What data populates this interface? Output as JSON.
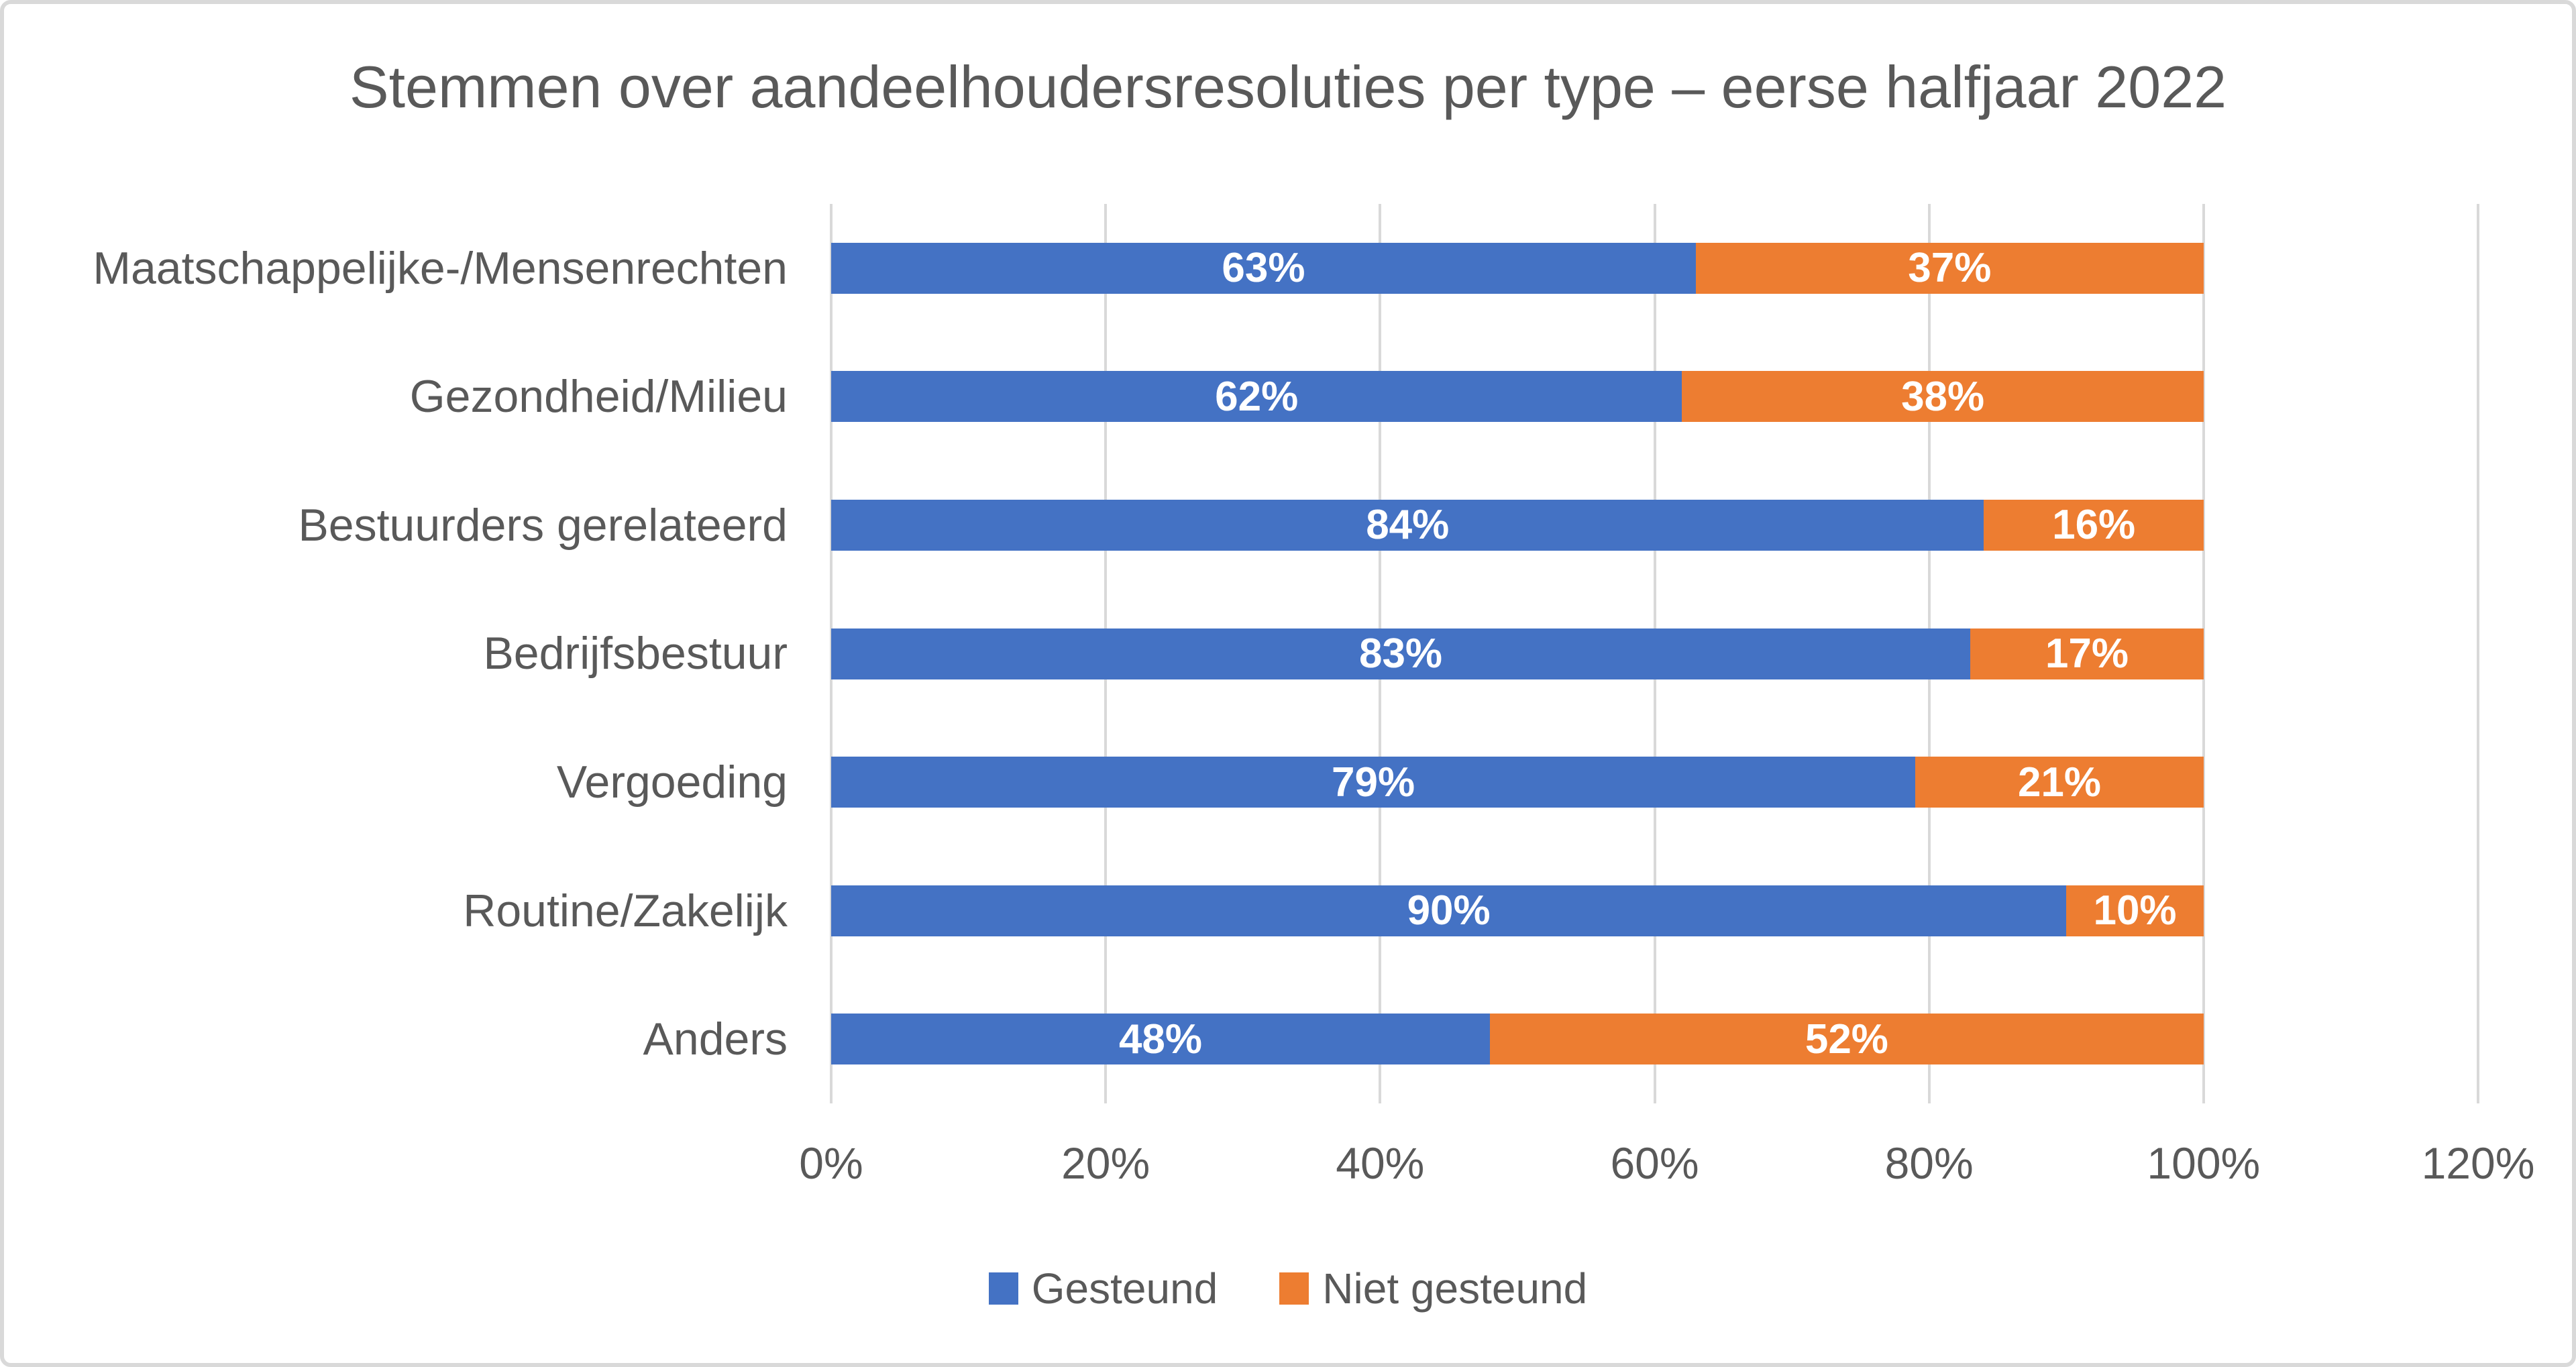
{
  "title": "Stemmen over aandeelhoudersresoluties per type – eerse halfjaar 2022",
  "chart_data": {
    "type": "bar",
    "orientation": "horizontal",
    "stacked": true,
    "title": "Stemmen over aandeelhoudersresoluties per type – eerse halfjaar 2022",
    "categories": [
      "Maatschappelijke-/Mensenrechten",
      "Gezondheid/Milieu",
      "Bestuurders gerelateerd",
      "Bedrijfsbestuur",
      "Vergoeding",
      "Routine/Zakelijk",
      "Anders"
    ],
    "series": [
      {
        "name": "Gesteund",
        "color": "#4472C4",
        "values": [
          63,
          62,
          84,
          83,
          79,
          90,
          48
        ]
      },
      {
        "name": "Niet gesteund",
        "color": "#ED7D31",
        "values": [
          37,
          38,
          16,
          17,
          21,
          10,
          52
        ]
      }
    ],
    "data_labels": {
      "show": true,
      "suffix": "%",
      "color": "#FFFFFF"
    },
    "x_axis": {
      "min": 0,
      "max": 120,
      "tick_step": 20,
      "tick_labels": [
        "0%",
        "20%",
        "40%",
        "60%",
        "80%",
        "100%",
        "120%"
      ]
    },
    "legend": {
      "position": "bottom",
      "entries": [
        {
          "label": "Gesteund",
          "color": "#4472C4"
        },
        {
          "label": "Niet gesteund",
          "color": "#ED7D31"
        }
      ]
    },
    "grid": true
  },
  "colors": {
    "text": "#595959",
    "gridline": "#D9D9D9",
    "border": "#D9D9D9",
    "background": "#FFFFFF",
    "bar_blue": "#4472C4",
    "bar_orange": "#ED7D31"
  }
}
